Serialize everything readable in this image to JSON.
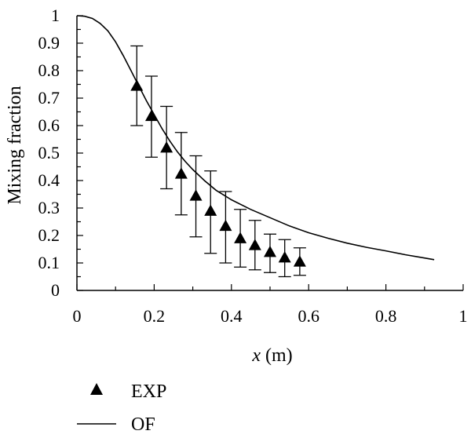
{
  "chart_data": {
    "type": "scatter",
    "xlabel_var": "x",
    "xlabel_unit": "(m)",
    "ylabel": "Mixing fraction",
    "xlim": [
      0,
      1
    ],
    "ylim": [
      0,
      1
    ],
    "x_ticks": [
      0,
      0.2,
      0.4,
      0.6,
      0.8,
      1
    ],
    "x_tick_labels": [
      "0",
      "0.2",
      "0.4",
      "0.6",
      "0.8",
      "1"
    ],
    "y_ticks": [
      0,
      0.1,
      0.2,
      0.3,
      0.4,
      0.5,
      0.6,
      0.7,
      0.8,
      0.9,
      1
    ],
    "y_tick_labels": [
      "0",
      "0.1",
      "0.2",
      "0.3",
      "0.4",
      "0.5",
      "0.6",
      "0.7",
      "0.8",
      "0.9",
      "1"
    ],
    "legend_position": "bottom-left",
    "series": [
      {
        "name": "EXP",
        "marker": "triangle",
        "x": [
          0.155,
          0.193,
          0.232,
          0.27,
          0.308,
          0.346,
          0.385,
          0.423,
          0.461,
          0.5,
          0.538,
          0.577
        ],
        "y": [
          0.745,
          0.635,
          0.52,
          0.425,
          0.345,
          0.29,
          0.235,
          0.19,
          0.165,
          0.14,
          0.12,
          0.105
        ],
        "err_low": [
          0.6,
          0.485,
          0.37,
          0.275,
          0.195,
          0.135,
          0.1,
          0.085,
          0.075,
          0.065,
          0.05,
          0.055
        ],
        "err_high": [
          0.89,
          0.78,
          0.67,
          0.575,
          0.49,
          0.435,
          0.36,
          0.295,
          0.255,
          0.205,
          0.185,
          0.155
        ]
      },
      {
        "name": "OF",
        "line": "solid",
        "x": [
          0,
          0.02,
          0.04,
          0.06,
          0.08,
          0.1,
          0.12,
          0.14,
          0.16,
          0.18,
          0.2,
          0.22,
          0.24,
          0.26,
          0.28,
          0.3,
          0.33,
          0.36,
          0.4,
          0.45,
          0.5,
          0.55,
          0.6,
          0.65,
          0.7,
          0.75,
          0.8,
          0.85,
          0.9,
          0.925
        ],
        "y": [
          1,
          0.998,
          0.99,
          0.972,
          0.945,
          0.905,
          0.855,
          0.8,
          0.745,
          0.69,
          0.64,
          0.59,
          0.545,
          0.505,
          0.47,
          0.44,
          0.4,
          0.365,
          0.33,
          0.295,
          0.265,
          0.235,
          0.21,
          0.19,
          0.172,
          0.157,
          0.144,
          0.13,
          0.118,
          0.112
        ]
      }
    ]
  }
}
